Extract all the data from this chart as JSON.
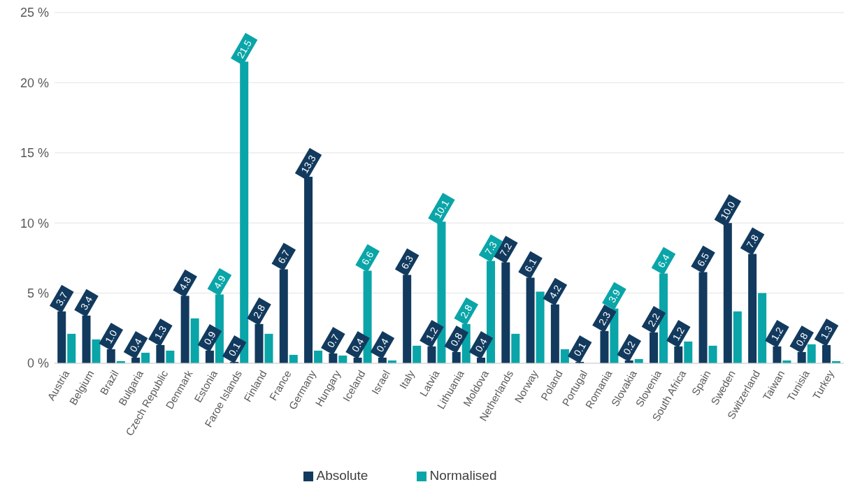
{
  "chart_data": {
    "type": "bar",
    "categories": [
      "Austria",
      "Belgium",
      "Brazil",
      "Bulgaria",
      "Czech Republic",
      "Denmark",
      "Estonia",
      "Faroe Islands",
      "Finland",
      "France",
      "Germany",
      "Hungary",
      "Iceland",
      "Israel",
      "Italy",
      "Latvia",
      "Lithuania",
      "Moldova",
      "Netherlands",
      "Norway",
      "Poland",
      "Portugal",
      "Romania",
      "Slovakia",
      "Slovenia",
      "South Africa",
      "Spain",
      "Sweden",
      "Switzerland",
      "Taiwan",
      "Tunisia",
      "Turkey"
    ],
    "series": [
      {
        "name": "Absolute",
        "color": "#123a5e",
        "values": [
          3.7,
          3.4,
          1.0,
          0.4,
          1.3,
          4.8,
          0.9,
          0.1,
          2.8,
          6.7,
          13.3,
          0.7,
          0.4,
          0.4,
          6.3,
          1.2,
          0.8,
          0.4,
          7.2,
          6.1,
          4.2,
          0.1,
          2.3,
          0.2,
          2.2,
          1.2,
          6.5,
          10.0,
          7.8,
          1.2,
          0.8,
          1.3
        ],
        "value_labels": [
          "3.7",
          "3.4",
          "1.0",
          "0.4",
          "1.3",
          "4.8",
          "0.9",
          "0.1",
          "2.8",
          "6.7",
          "13.3",
          "0.7",
          "0.4",
          "0.4",
          "6.3",
          "1.2",
          "0.8",
          "0.4",
          "7.2",
          "6.1",
          "4.2",
          "0.1",
          "2.3",
          "0.2",
          "2.2",
          "1.2",
          "6.5",
          "10.0",
          "7.8",
          "1.2",
          "0.8",
          "1.3"
        ]
      },
      {
        "name": "Normalised",
        "color": "#0aa5a8",
        "values": [
          2.1,
          1.7,
          0.15,
          0.75,
          0.9,
          3.2,
          4.9,
          21.5,
          2.1,
          0.6,
          0.9,
          0.55,
          6.6,
          0.2,
          1.25,
          10.1,
          2.8,
          7.3,
          2.1,
          5.1,
          1.0,
          null,
          3.9,
          0.3,
          6.4,
          1.55,
          1.25,
          3.7,
          5.0,
          0.2,
          1.35,
          0.15
        ],
        "value_labels": [
          null,
          null,
          null,
          null,
          null,
          null,
          "4.9",
          "21.5",
          null,
          null,
          null,
          null,
          "6.6",
          null,
          null,
          "10.1",
          "2.8",
          "7.3",
          null,
          null,
          null,
          null,
          "3.9",
          null,
          "6.4",
          null,
          null,
          null,
          null,
          null,
          null,
          null
        ]
      }
    ],
    "ylim": [
      0,
      25
    ],
    "yticks": [
      {
        "value": 0,
        "label": "0 %"
      },
      {
        "value": 5,
        "label": "5 %"
      },
      {
        "value": 10,
        "label": "10 %"
      },
      {
        "value": 15,
        "label": "15 %"
      },
      {
        "value": 20,
        "label": "20 %"
      },
      {
        "value": 25,
        "label": "25 %"
      }
    ],
    "grid": "y",
    "legend": "bottom"
  }
}
